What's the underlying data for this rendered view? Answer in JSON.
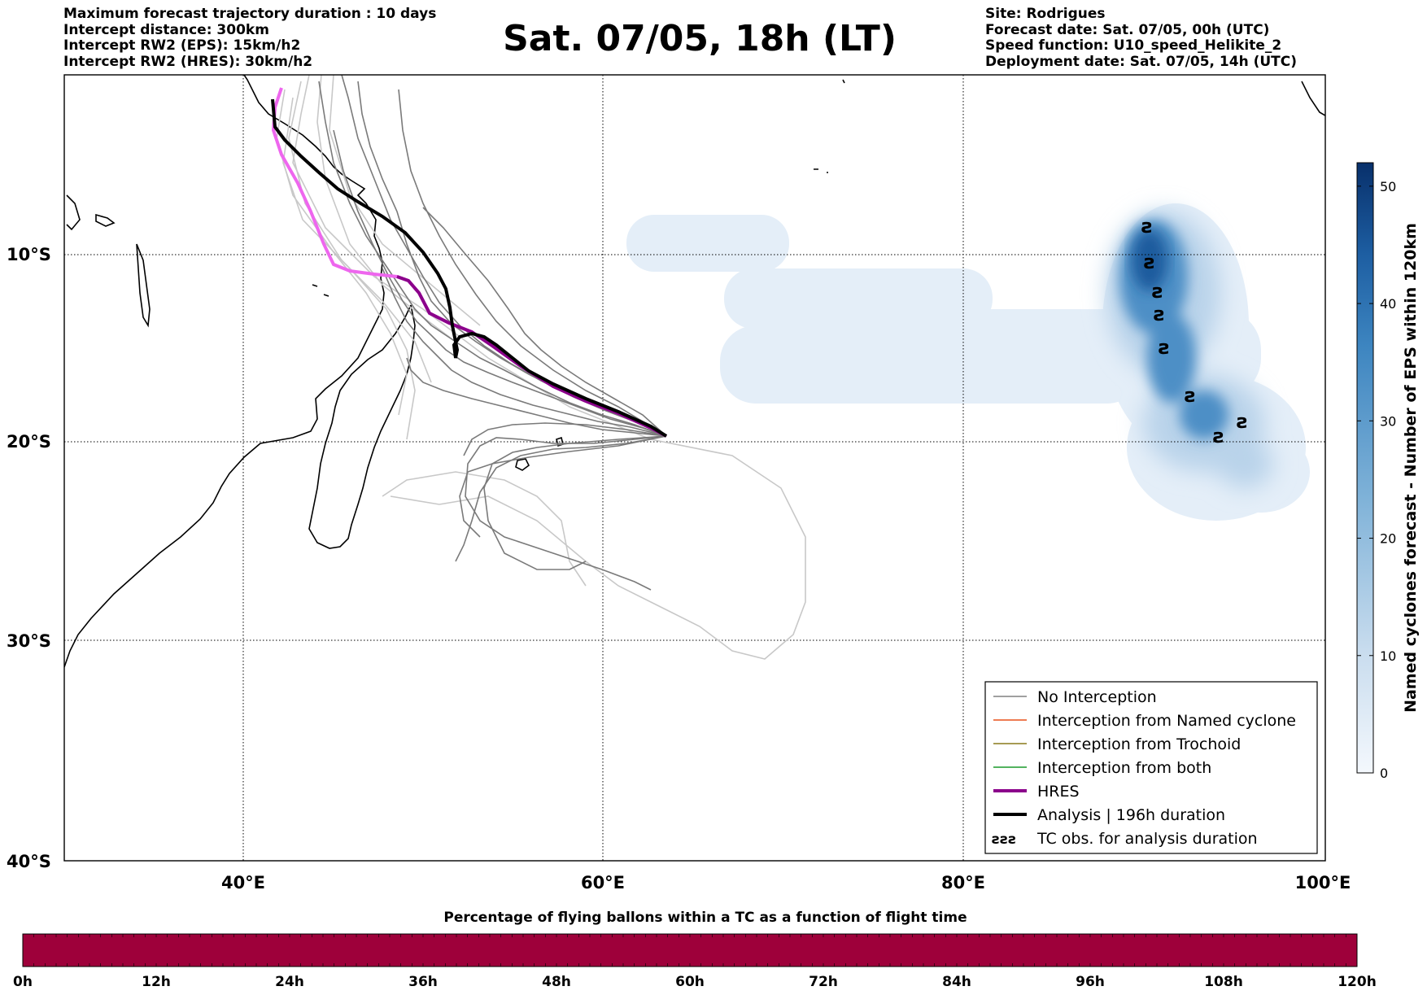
{
  "header_left": [
    "Maximum forecast trajectory duration : 10 days",
    "Intercept distance: 300km",
    "Intercept RW2 (EPS):  15km/h2",
    "Intercept RW2 (HRES): 30km/h2"
  ],
  "header_right": [
    "Site: Rodrigues",
    "Forecast date: Sat. 07/05, 00h (UTC)",
    "Speed function: U10_speed_Helikite_2",
    "Deployment date: Sat. 07/05, 14h (UTC)"
  ],
  "title": "Sat. 07/05, 18h (LT)",
  "map": {
    "lon_labels": [
      "40°E",
      "60°E",
      "80°E",
      "100°E"
    ],
    "lat_labels": [
      "10°S",
      "20°S",
      "30°S",
      "40°S"
    ],
    "lon_range": [
      30,
      100
    ],
    "lat_range": [
      -40,
      -0.5
    ]
  },
  "legend": [
    {
      "label": "No Interception",
      "color": "#808080",
      "style": "line"
    },
    {
      "label": "Interception from Named cyclone",
      "color": "#e8501a",
      "style": "line"
    },
    {
      "label": "Interception from Trochoid",
      "color": "#8a7a1a",
      "style": "line"
    },
    {
      "label": "Interception from both",
      "color": "#1a9a2a",
      "style": "line"
    },
    {
      "label": "HRES",
      "color": "#8b008b",
      "style": "thick"
    },
    {
      "label": "Analysis | 196h duration",
      "color": "#000000",
      "style": "thick"
    },
    {
      "label": "TC obs. for analysis duration",
      "color": "#000000",
      "style": "symbol",
      "symbol": "ƨƨƨ"
    }
  ],
  "colorbar_right": {
    "label": "Named cyclones forecast - Number of EPS within 120km",
    "ticks": [
      "0",
      "10",
      "20",
      "30",
      "40",
      "50"
    ],
    "tick_values": [
      0,
      10,
      20,
      30,
      40,
      50
    ],
    "max": 52,
    "color_low": "#e8f1fa",
    "color_high": "#08306b"
  },
  "colorbar_bottom": {
    "title": "Percentage of flying ballons within a TC as a function of flight time",
    "ticks": [
      "0h",
      "12h",
      "24h",
      "36h",
      "48h",
      "60h",
      "72h",
      "84h",
      "96h",
      "108h",
      "120h"
    ],
    "fill_color": "#9e003a"
  },
  "colors": {
    "ensemble_gray": "#7a7a7a",
    "ensemble_light": "#c8c8c8",
    "hres": "#8b008b",
    "hres_light": "#ee66ee",
    "analysis": "#000000",
    "density": "#2a78b8"
  }
}
